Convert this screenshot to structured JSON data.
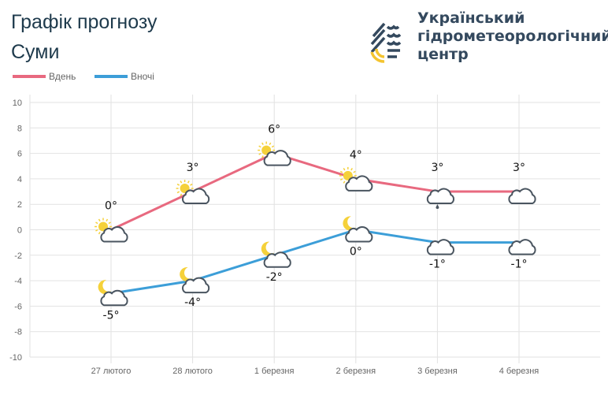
{
  "header": {
    "title": "Графік прогнозу",
    "city": "Суми"
  },
  "logo": {
    "org_lines": [
      "Український",
      "гідрометеорологічний",
      "центр"
    ]
  },
  "chart_data": {
    "type": "line",
    "categories": [
      "27 лютого",
      "28 лютого",
      "1 березня",
      "2 березня",
      "3 березня",
      "4 березня"
    ],
    "ylim": [
      -10,
      10
    ],
    "yticks": [
      10,
      8,
      6,
      4,
      2,
      0,
      -2,
      -4,
      -6,
      -8,
      -10
    ],
    "grid": true,
    "legend": "top-left",
    "series": [
      {
        "name": "Вдень",
        "color": "#e8697f",
        "values": [
          0,
          3,
          6,
          4,
          3,
          3
        ],
        "labels": [
          "0°",
          "3°",
          "6°",
          "4°",
          "3°",
          "3°"
        ],
        "icons": [
          "sun-cloud",
          "sun-cloud",
          "sun-cloud",
          "sun-cloud",
          "cloud-rain",
          "cloud"
        ]
      },
      {
        "name": "Вночі",
        "color": "#3c9ed8",
        "values": [
          -5,
          -4,
          -2,
          0,
          -1,
          -1
        ],
        "labels": [
          "-5°",
          "-4°",
          "-2°",
          "0°",
          "-1°",
          "-1°"
        ],
        "icons": [
          "moon-cloud",
          "moon-cloud",
          "moon-cloud",
          "moon-cloud",
          "cloud",
          "cloud"
        ]
      }
    ]
  }
}
